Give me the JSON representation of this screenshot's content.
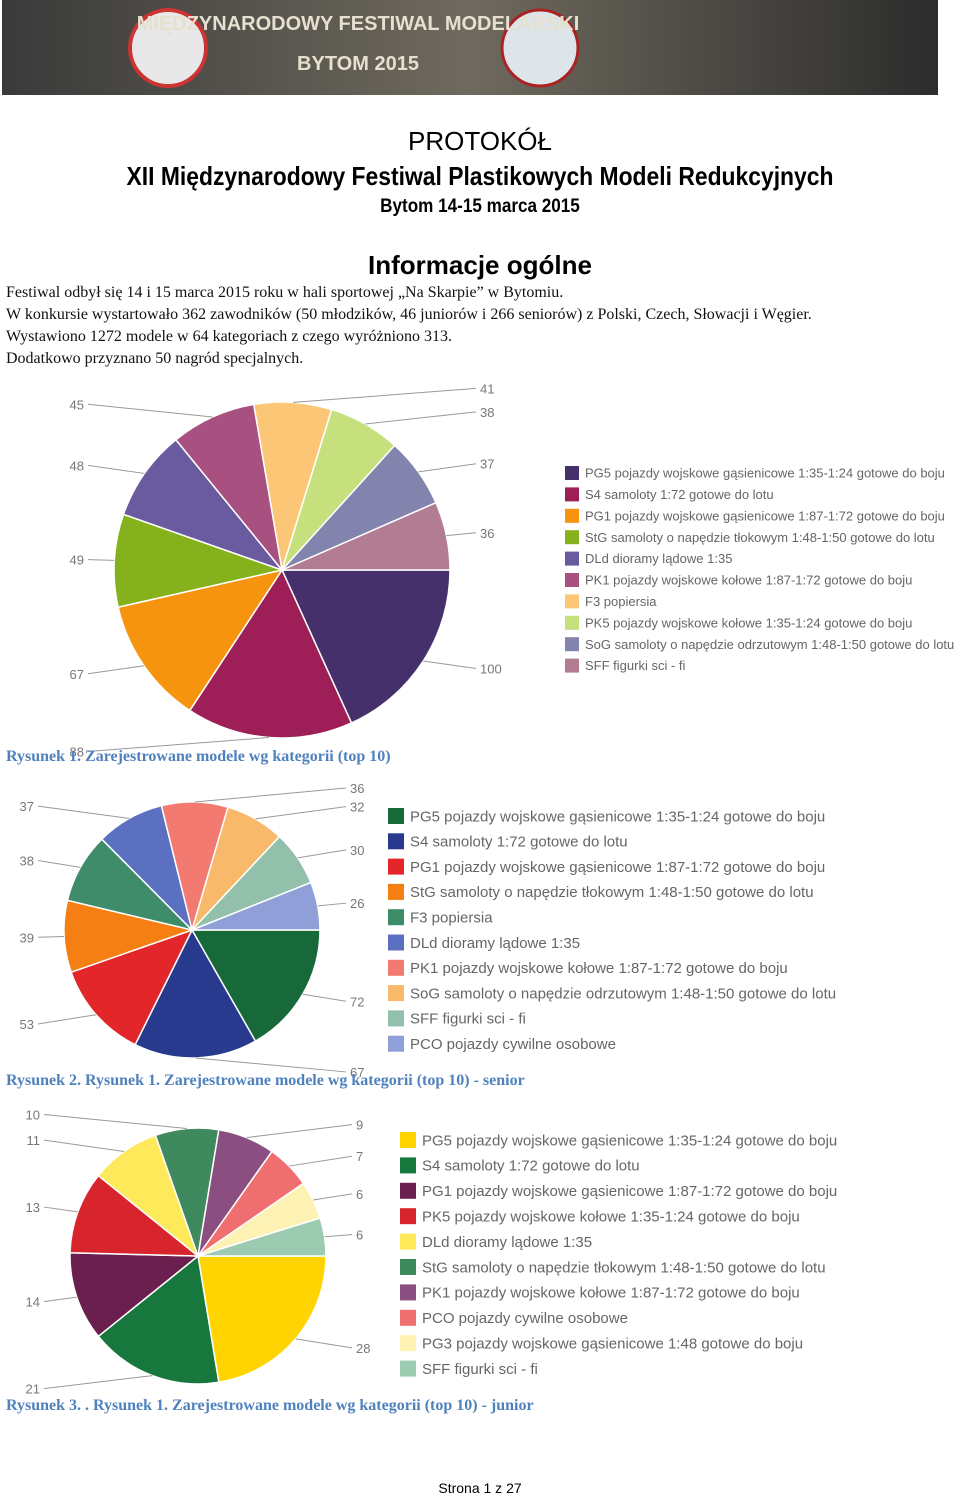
{
  "banner": {
    "line1": "MIĘDZYNARODOWY FESTIWAL MODELARSKI",
    "line2": "BYTOM 2015"
  },
  "header": {
    "title": "PROTOKÓŁ",
    "subtitle": "XII Międzynarodowy Festiwal Plastikowych Modeli Redukcyjnych",
    "date": "Bytom 14-15 marca 2015"
  },
  "section": {
    "heading": "Informacje ogólne",
    "paragraphs": [
      "Festiwal odbył się 14 i 15 marca 2015 roku w hali sportowej „Na Skarpie” w Bytomiu.",
      "W konkursie wystartowało 362 zawodników (50 młodzików, 46 juniorów i 266 seniorów) z Polski, Czech, Słowacji i Węgier.",
      "Wystawiono 1272 modele w 64 kategoriach z czego wyróżniono 313.",
      "Dodatkowo przyznano 50 nagród specjalnych."
    ]
  },
  "chart_data": [
    {
      "type": "pie",
      "caption": "Rysunek 1. Zarejestrowane modele wg kategorii (top 10)",
      "categories": [
        "PG5 pojazdy wojskowe gąsienicowe 1:35-1:24 gotowe do boju",
        "S4 samoloty 1:72 gotowe do lotu",
        "PG1 pojazdy wojskowe gąsienicowe 1:87-1:72 gotowe do boju",
        "StG samoloty o napędzie tłokowym 1:48-1:50 gotowe do lotu",
        "DLd dioramy lądowe 1:35",
        "PK1 pojazdy wojskowe kołowe 1:87-1:72 gotowe do boju",
        "F3 popiersia",
        "PK5 pojazdy wojskowe kołowe 1:35-1:24 gotowe do boju",
        "SoG samoloty o napędzie odrzutowym 1:48-1:50 gotowe do lotu",
        "SFF figurki sci - fi"
      ],
      "values": [
        100,
        88,
        67,
        49,
        48,
        45,
        41,
        38,
        37,
        36
      ],
      "colors": [
        "#45306b",
        "#9e1f57",
        "#f7940f",
        "#85b21c",
        "#6a5a9f",
        "#a8507f",
        "#fbc777",
        "#c5e07c",
        "#8384ad",
        "#b27d93"
      ]
    },
    {
      "type": "pie",
      "caption": "Rysunek 2. Rysunek 1. Zarejestrowane modele wg kategorii (top 10)  - senior",
      "categories": [
        "PG5 pojazdy wojskowe gąsienicowe 1:35-1:24 gotowe do boju",
        "S4 samoloty 1:72 gotowe do lotu",
        "PG1 pojazdy wojskowe gąsienicowe 1:87-1:72 gotowe do boju",
        "StG samoloty o napędzie tłokowym 1:48-1:50 gotowe do lotu",
        "F3 popiersia",
        "DLd dioramy lądowe 1:35",
        "PK1 pojazdy wojskowe kołowe 1:87-1:72 gotowe do boju",
        "SoG samoloty o napędzie odrzutowym 1:48-1:50 gotowe do lotu",
        "SFF figurki sci - fi",
        "PCO pojazdy cywilne osobowe"
      ],
      "values": [
        72,
        67,
        53,
        39,
        38,
        37,
        36,
        32,
        30,
        26
      ],
      "colors": [
        "#17693a",
        "#283a8e",
        "#e2262a",
        "#f57f12",
        "#3e8c6a",
        "#5c70c2",
        "#f27a70",
        "#f9b96b",
        "#93c0aa",
        "#909fd8"
      ]
    },
    {
      "type": "pie",
      "caption": "Rysunek 3. . Rysunek 1. Zarejestrowane modele wg kategorii (top 10)  - junior",
      "categories": [
        "PG5 pojazdy wojskowe gąsienicowe 1:35-1:24 gotowe do boju",
        "S4 samoloty 1:72 gotowe do lotu",
        "PG1 pojazdy wojskowe gąsienicowe 1:87-1:72 gotowe do boju",
        "PK5 pojazdy wojskowe kołowe 1:35-1:24 gotowe do boju",
        "DLd dioramy lądowe 1:35",
        "StG samoloty o napędzie tłokowym 1:48-1:50 gotowe do lotu",
        "PK1 pojazdy wojskowe kołowe 1:87-1:72 gotowe do boju",
        "PCO pojazdy cywilne osobowe",
        "PG3 pojazdy wojskowe gąsienicowe 1:48 gotowe do boju",
        "SFF figurki sci - fi"
      ],
      "values": [
        28,
        21,
        14,
        13,
        11,
        10,
        9,
        7,
        6,
        6
      ],
      "colors": [
        "#ffd400",
        "#17773c",
        "#6a1f4f",
        "#d8242d",
        "#fde95a",
        "#3e8a5e",
        "#8a4e80",
        "#ef6f70",
        "#fdf2b3",
        "#9ccbb1"
      ]
    }
  ],
  "footer": "Strona 1 z 27"
}
